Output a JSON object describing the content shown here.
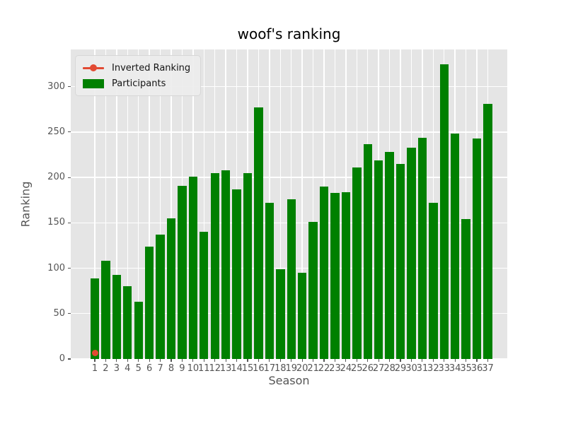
{
  "chart_data": {
    "type": "bar",
    "title": "woof's ranking",
    "xlabel": "Season",
    "ylabel": "Ranking",
    "categories": [
      1,
      2,
      3,
      4,
      5,
      6,
      7,
      8,
      9,
      10,
      11,
      12,
      13,
      14,
      15,
      16,
      17,
      18,
      19,
      20,
      21,
      22,
      23,
      24,
      25,
      26,
      27,
      28,
      29,
      30,
      31,
      32,
      33,
      34,
      35,
      36,
      37
    ],
    "series": [
      {
        "name": "Inverted Ranking",
        "type": "scatter",
        "color": "#E24A33",
        "points": [
          {
            "x": 1,
            "y": 7
          }
        ]
      },
      {
        "name": "Participants",
        "type": "bar",
        "color": "#008000",
        "values": [
          89,
          108,
          93,
          80,
          63,
          124,
          137,
          155,
          191,
          201,
          140,
          205,
          208,
          187,
          205,
          277,
          172,
          99,
          176,
          95,
          151,
          190,
          183,
          184,
          211,
          237,
          219,
          228,
          215,
          233,
          244,
          172,
          325,
          248,
          154,
          243,
          281
        ]
      }
    ],
    "ylim": [
      0,
      341
    ],
    "yticks": [
      0,
      50,
      100,
      150,
      200,
      250,
      300
    ],
    "grid": true,
    "background": "#E5E5E5",
    "grid_color": "#FFFFFF",
    "tick_color": "#555555",
    "legend": {
      "position": "upper left",
      "items": [
        {
          "label": "Inverted Ranking",
          "color": "#E24A33",
          "marker": "line-circle"
        },
        {
          "label": "Participants",
          "color": "#008000",
          "marker": "rect"
        }
      ]
    }
  }
}
